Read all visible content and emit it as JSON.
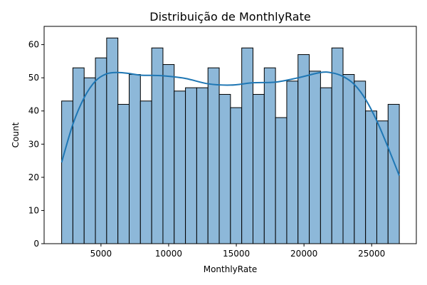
{
  "chart_data": {
    "type": "bar",
    "title": "Distribuição de MonthlyRate",
    "xlabel": "MonthlyRate",
    "ylabel": "Count",
    "xlim": [
      800,
      28300
    ],
    "ylim": [
      0,
      65.5
    ],
    "x_ticks": [
      5000,
      10000,
      15000,
      20000,
      25000
    ],
    "y_ticks": [
      0,
      10,
      20,
      30,
      40,
      50,
      60
    ],
    "grid": false,
    "legend": "none",
    "bar_color": "#8db8d9",
    "kde_color": "#1f77b4",
    "bins": [
      {
        "x0": 2094,
        "x1": 2925,
        "count": 43
      },
      {
        "x0": 2925,
        "x1": 3757,
        "count": 53
      },
      {
        "x0": 3757,
        "x1": 4589,
        "count": 50
      },
      {
        "x0": 4589,
        "x1": 5420,
        "count": 56
      },
      {
        "x0": 5420,
        "x1": 6252,
        "count": 62
      },
      {
        "x0": 6252,
        "x1": 7084,
        "count": 42
      },
      {
        "x0": 7084,
        "x1": 7915,
        "count": 51
      },
      {
        "x0": 7915,
        "x1": 8747,
        "count": 43
      },
      {
        "x0": 8747,
        "x1": 9579,
        "count": 59
      },
      {
        "x0": 9579,
        "x1": 10410,
        "count": 54
      },
      {
        "x0": 10410,
        "x1": 11242,
        "count": 46
      },
      {
        "x0": 11242,
        "x1": 12074,
        "count": 47
      },
      {
        "x0": 12074,
        "x1": 12905,
        "count": 47
      },
      {
        "x0": 12905,
        "x1": 13737,
        "count": 53
      },
      {
        "x0": 13737,
        "x1": 14569,
        "count": 45
      },
      {
        "x0": 14569,
        "x1": 15400,
        "count": 41
      },
      {
        "x0": 15400,
        "x1": 16232,
        "count": 59
      },
      {
        "x0": 16232,
        "x1": 17064,
        "count": 45
      },
      {
        "x0": 17064,
        "x1": 17895,
        "count": 53
      },
      {
        "x0": 17895,
        "x1": 18727,
        "count": 38
      },
      {
        "x0": 18727,
        "x1": 19559,
        "count": 49
      },
      {
        "x0": 19559,
        "x1": 20390,
        "count": 57
      },
      {
        "x0": 20390,
        "x1": 21222,
        "count": 52
      },
      {
        "x0": 21222,
        "x1": 22054,
        "count": 47
      },
      {
        "x0": 22054,
        "x1": 22885,
        "count": 59
      },
      {
        "x0": 22885,
        "x1": 23717,
        "count": 51
      },
      {
        "x0": 23717,
        "x1": 24549,
        "count": 49
      },
      {
        "x0": 24549,
        "x1": 25380,
        "count": 40
      },
      {
        "x0": 25380,
        "x1": 26212,
        "count": 37
      },
      {
        "x0": 26212,
        "x1": 27043,
        "count": 42
      }
    ],
    "kde": {
      "x": [
        2094,
        2925,
        3757,
        4589,
        5420,
        6252,
        7084,
        7915,
        9579,
        11242,
        12905,
        14569,
        16232,
        17895,
        19559,
        21222,
        22054,
        22885,
        23717,
        24549,
        25380,
        26212,
        27043
      ],
      "y": [
        24.5,
        36,
        44,
        49,
        51.2,
        51.6,
        51.3,
        50.8,
        50.6,
        49.8,
        48.2,
        47.8,
        48.5,
        48.7,
        50,
        51.6,
        51.5,
        50.4,
        48,
        43.5,
        37,
        29,
        20.5
      ]
    }
  }
}
